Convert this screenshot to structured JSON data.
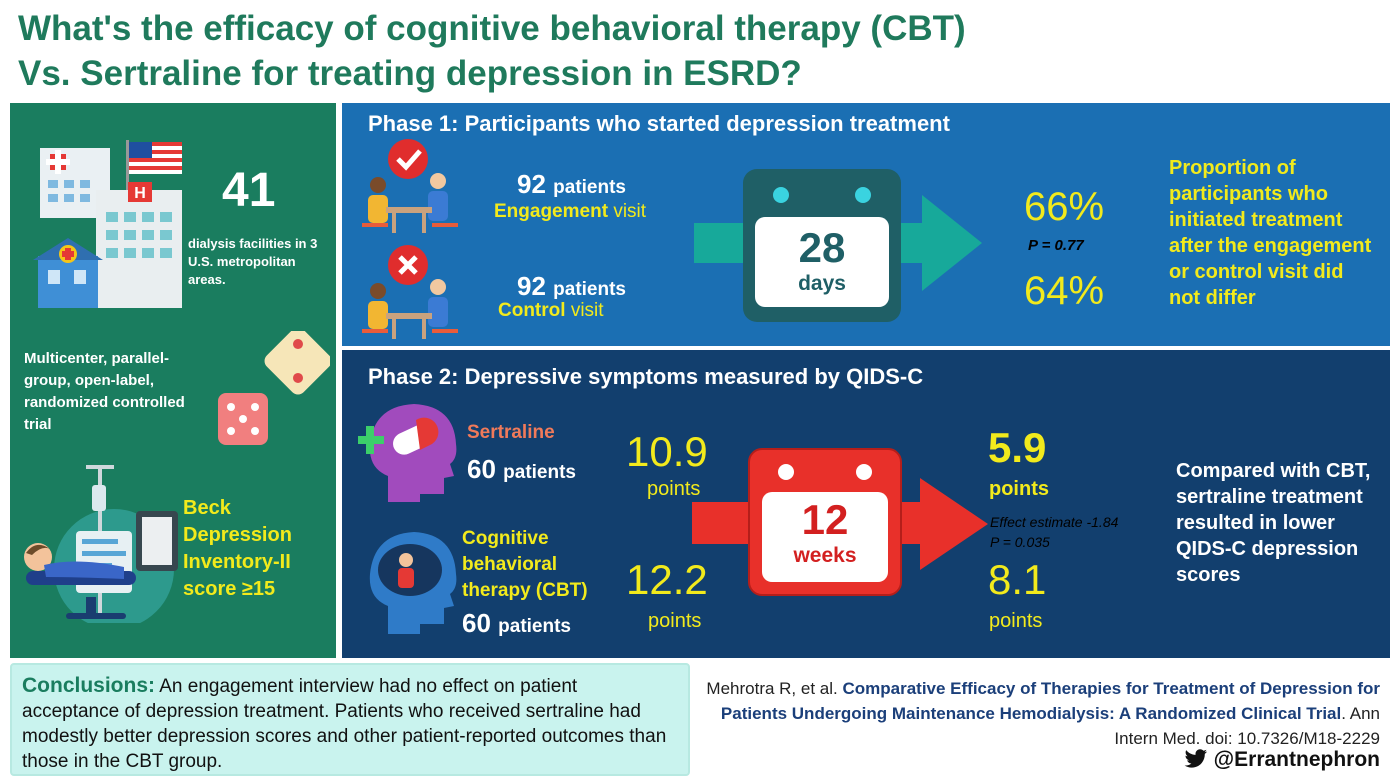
{
  "title": {
    "line1": "What's the efficacy of cognitive behavioral therapy (CBT)",
    "line2": "Vs. Sertraline for treating depression in ESRD?"
  },
  "left": {
    "facilities_count": "41",
    "facilities_desc": "dialysis facilities in 3 U.S. metropolitan areas.",
    "trial_design": "Multicenter, parallel-group, open-label, randomized controlled trial",
    "inclusion": "Beck Depression Inventory-II score ≥15"
  },
  "phase1": {
    "title": "Phase 1: Participants who started depression treatment",
    "engagement": {
      "count": "92",
      "unit": "patients",
      "label_em": "Engagement",
      "label_rest": "visit"
    },
    "control": {
      "count": "92",
      "unit": "patients",
      "label_em": "Control",
      "label_rest": "visit"
    },
    "duration": {
      "value": "28",
      "unit": "days"
    },
    "engagement_pct": "66%",
    "p_value": "P = 0.77",
    "control_pct": "64%",
    "summary": "Proportion of participants who initiated treatment after the engagement or control visit did not differ"
  },
  "phase2": {
    "title": "Phase 2: Depressive symptoms measured by QIDS-C",
    "sertraline": {
      "label": "Sertraline",
      "count": "60",
      "unit": "patients",
      "baseline": "10.9",
      "baseline_unit": "points",
      "final": "5.9",
      "final_unit": "points"
    },
    "cbt": {
      "label": "Cognitive behavioral therapy  (CBT)",
      "count": "60",
      "unit": "patients",
      "baseline": "12.2",
      "baseline_unit": "points",
      "final": "8.1",
      "final_unit": "points"
    },
    "duration": {
      "value": "12",
      "unit": "weeks"
    },
    "effect_estimate": "Effect estimate -1.84",
    "p_value": "P = 0.035",
    "summary": "Compared with CBT, sertraline treatment resulted in lower QIDS-C depression scores"
  },
  "conclusions": {
    "label": "Conclusions:",
    "text": "An engagement interview had no effect on patient acceptance of depression treatment. Patients who received sertraline had modestly better depression scores and other patient-reported outcomes than those in the CBT group."
  },
  "reference": {
    "authors": "Mehrotra R, et al.",
    "title": "Comparative Efficacy of Therapies for Treatment of Depression for Patients Undergoing Maintenance Hemodialysis: A Randomized Clinical Trial",
    "journal": ". Ann Intern Med. doi: 10.7326/M18-2229"
  },
  "twitter": {
    "handle": "@Errantnephron",
    "icon": "twitter-bird-icon"
  },
  "colors": {
    "title_green": "#1f7a5c",
    "left_green": "#1a7d5f",
    "phase1_blue": "#1b6fb3",
    "phase2_navy": "#123f6e",
    "accent_yellow": "#f2ea1c",
    "arrow_teal": "#17a99a",
    "arrow_red": "#e8302a"
  }
}
